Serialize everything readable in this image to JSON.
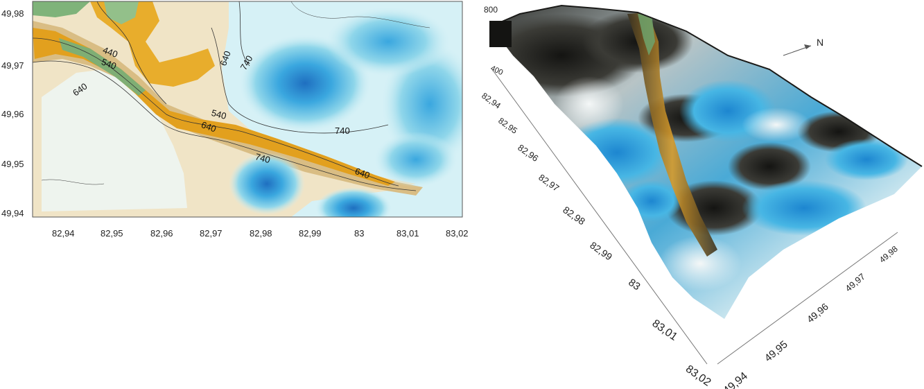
{
  "contour_map": {
    "x_ticks": [
      "82,94",
      "82,95",
      "82,96",
      "82,97",
      "82,98",
      "82,99",
      "83",
      "83,01",
      "83,02"
    ],
    "y_ticks": [
      "49,98",
      "49,97",
      "49,96",
      "49,95",
      "49,94"
    ],
    "contour_labels": [
      "440",
      "540",
      "640",
      "640",
      "540",
      "640",
      "740",
      "740",
      "740",
      "640"
    ],
    "colors": {
      "low_green": "#7fb37a",
      "mid_orange": "#e3a31d",
      "tan": "#d9c08a",
      "cream": "#f3ead2",
      "pale_blue": "#cfeef4",
      "light_blue": "#8fd6ea",
      "blue": "#3aa7df",
      "deep_blue": "#1f78c8"
    }
  },
  "surface_3d": {
    "z_ticks": [
      "800",
      "400"
    ],
    "north_label": "N",
    "x_ticks": [
      "82,94",
      "82,95",
      "82,96",
      "82,97",
      "82,98",
      "82,99",
      "83",
      "83,01",
      "83,02"
    ],
    "y_ticks": [
      "49,94",
      "49,95",
      "49,96",
      "49,97",
      "49,98"
    ]
  }
}
